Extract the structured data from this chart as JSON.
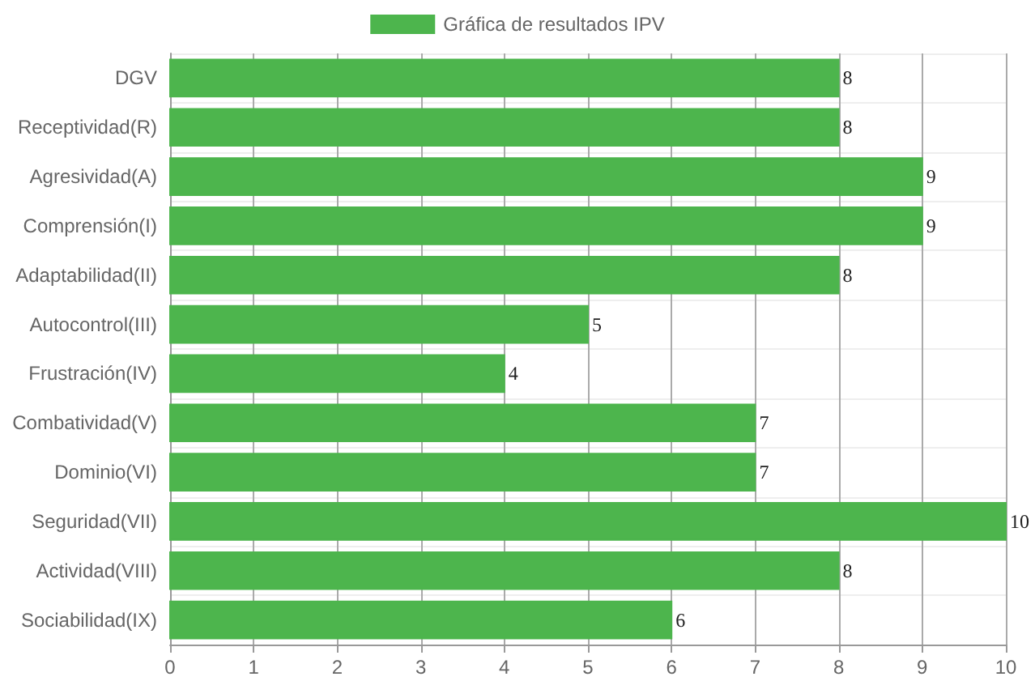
{
  "chart_data": {
    "type": "bar",
    "orientation": "horizontal",
    "categories": [
      "DGV",
      "Receptividad(R)",
      "Agresividad(A)",
      "Comprensión(I)",
      "Adaptabilidad(II)",
      "Autocontrol(III)",
      "Frustración(IV)",
      "Combatividad(V)",
      "Dominio(VI)",
      "Seguridad(VII)",
      "Actividad(VIII)",
      "Sociabilidad(IX)"
    ],
    "series": [
      {
        "name": "Gráfica de resultados IPV",
        "color": "#4db54d",
        "values": [
          8,
          8,
          9,
          9,
          8,
          5,
          4,
          7,
          7,
          10,
          8,
          6
        ]
      }
    ],
    "xlim": [
      0,
      10
    ],
    "xticks": [
      0,
      1,
      2,
      3,
      4,
      5,
      6,
      7,
      8,
      9,
      10
    ],
    "grid": true,
    "legend": "top",
    "data_labels": true
  }
}
